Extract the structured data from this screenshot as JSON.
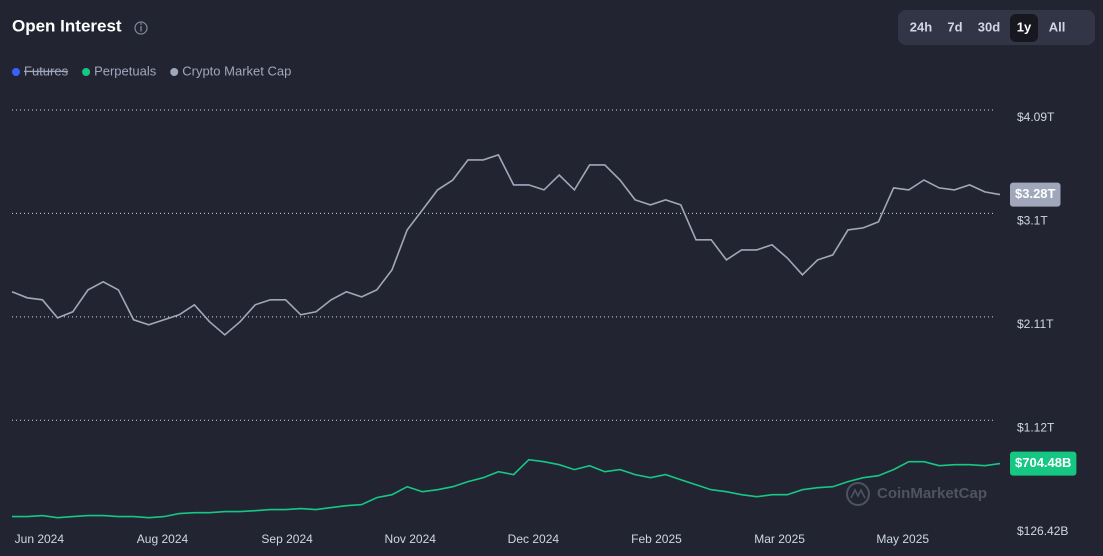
{
  "chart_data": {
    "type": "line",
    "title": "Open Interest",
    "x": [
      0,
      1,
      2,
      3,
      4,
      5,
      6,
      7,
      8,
      9,
      10,
      11,
      12,
      13,
      14,
      15,
      16,
      17,
      18,
      19,
      20,
      21,
      22,
      23,
      24,
      25,
      26,
      27,
      28,
      29,
      30,
      31,
      32,
      33,
      34,
      35,
      36,
      37,
      38,
      39,
      40,
      41,
      42,
      43,
      44,
      45,
      46,
      47,
      48,
      49,
      50,
      51,
      52,
      53,
      54,
      55,
      56,
      57,
      58,
      59,
      60,
      61,
      62,
      63,
      64,
      65
    ],
    "xlim": [
      0,
      65
    ],
    "xticks": [
      {
        "value": 1.8,
        "label": "Jun 2024"
      },
      {
        "value": 9.9,
        "label": "Aug 2024"
      },
      {
        "value": 18.1,
        "label": "Sep 2024"
      },
      {
        "value": 26.2,
        "label": "Nov 2024"
      },
      {
        "value": 34.3,
        "label": "Dec 2024"
      },
      {
        "value": 42.4,
        "label": "Feb 2025"
      },
      {
        "value": 50.5,
        "label": "Mar 2025"
      },
      {
        "value": 58.6,
        "label": "May 2025"
      }
    ],
    "ylim": [
      126.42,
      4090
    ],
    "yticks": [
      {
        "value": 4090,
        "label": "$4.09T"
      },
      {
        "value": 3100,
        "label": "$3.1T"
      },
      {
        "value": 2110,
        "label": "$2.11T"
      },
      {
        "value": 1120,
        "label": "$1.12T"
      },
      {
        "value": 126.42,
        "label": "$126.42B"
      }
    ],
    "grid": true,
    "hidden_series": [
      {
        "name": "Futures",
        "color": "#3861fb"
      }
    ],
    "series": [
      {
        "name": "Perpetuals",
        "color": "#16c784",
        "values": [
          197,
          197,
          207,
          187,
          197,
          207,
          207,
          197,
          197,
          187,
          197,
          226,
          235,
          235,
          245,
          245,
          254,
          264,
          264,
          274,
          264,
          283,
          302,
          312,
          379,
          407,
          484,
          436,
          455,
          484,
          532,
          570,
          627,
          599,
          742,
          723,
          694,
          647,
          685,
          627,
          647,
          599,
          570,
          599,
          551,
          503,
          455,
          436,
          407,
          388,
          407,
          407,
          455,
          474,
          484,
          532,
          570,
          589,
          647,
          723,
          723,
          685,
          694,
          694,
          685,
          704.48
        ],
        "value_labels": [
          null,
          null,
          null,
          null,
          null,
          null,
          null,
          null,
          null,
          null,
          null,
          null,
          null,
          null,
          null,
          null,
          null,
          null,
          null,
          null,
          null,
          null,
          null,
          null,
          null,
          null,
          null,
          null,
          null,
          null,
          null,
          null,
          null,
          null,
          null,
          null,
          null,
          null,
          null,
          null,
          null,
          null,
          null,
          null,
          null,
          null,
          null,
          null,
          null,
          null,
          null,
          null,
          null,
          null,
          null,
          null,
          null,
          null,
          null,
          null,
          null,
          null,
          null,
          null,
          null,
          "$704.48B"
        ]
      },
      {
        "name": "Crypto Market Cap",
        "color": "#a1a7bb",
        "values": [
          2349,
          2292,
          2273,
          2100,
          2158,
          2368,
          2445,
          2368,
          2081,
          2034,
          2081,
          2129,
          2225,
          2062,
          1938,
          2062,
          2225,
          2273,
          2273,
          2129,
          2158,
          2273,
          2349,
          2301,
          2368,
          2560,
          2942,
          3133,
          3325,
          3420,
          3612,
          3612,
          3660,
          3373,
          3373,
          3325,
          3468,
          3325,
          3564,
          3564,
          3420,
          3229,
          3181,
          3229,
          3181,
          2847,
          2847,
          2655,
          2751,
          2751,
          2799,
          2674,
          2512,
          2655,
          2703,
          2942,
          2961,
          3019,
          3344,
          3325,
          3420,
          3344,
          3325,
          3373,
          3306,
          3280
        ],
        "value_labels": [
          null,
          null,
          null,
          null,
          null,
          null,
          null,
          null,
          null,
          null,
          null,
          null,
          null,
          null,
          null,
          null,
          null,
          null,
          null,
          null,
          null,
          null,
          null,
          null,
          null,
          null,
          null,
          null,
          null,
          null,
          null,
          null,
          null,
          null,
          null,
          null,
          null,
          null,
          null,
          null,
          null,
          null,
          null,
          null,
          null,
          null,
          null,
          null,
          null,
          null,
          null,
          null,
          null,
          null,
          null,
          null,
          null,
          null,
          null,
          null,
          null,
          null,
          null,
          null,
          null,
          "$3.28T"
        ]
      }
    ]
  },
  "ui": {
    "range_buttons": [
      "24h",
      "7d",
      "30d",
      "1y",
      "All"
    ],
    "selected_range": "1y",
    "watermark": "CoinMarketCap"
  }
}
